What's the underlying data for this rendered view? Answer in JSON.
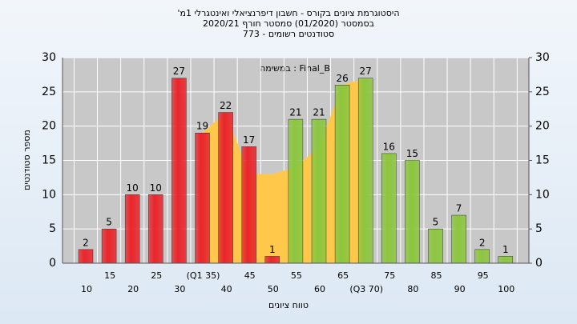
{
  "chart_data": {
    "type": "bar",
    "title": [
      "היסטוגרמת ציונים בקורס - חשבון דיפרנציאלי ואינטגרלי 1מ'",
      "בסמסטר (01/2020) סמסטר חורף 2020/21",
      "סטודנטים רשומים - 773"
    ],
    "annotation": "במשימה : Final_B",
    "xlabel": "טווח ציונים",
    "ylabel": "מספר סטודנטים",
    "categories": [
      "10",
      "15",
      "20",
      "25",
      "30",
      "(Q1 35)",
      "40",
      "45",
      "50",
      "55",
      "60",
      "65",
      "(Q3 70)",
      "75",
      "80",
      "85",
      "90",
      "95",
      "100"
    ],
    "values": [
      2,
      5,
      10,
      10,
      27,
      19,
      22,
      17,
      1,
      21,
      21,
      26,
      27,
      16,
      15,
      5,
      7,
      2,
      1
    ],
    "colors": [
      "#e8262c",
      "#e8262c",
      "#e8262c",
      "#e8262c",
      "#e8262c",
      "#e8262c",
      "#e8262c",
      "#e8262c",
      "#e8262c",
      "#8cc63f",
      "#8cc63f",
      "#8cc63f",
      "#8cc63f",
      "#8cc63f",
      "#8cc63f",
      "#8cc63f",
      "#8cc63f",
      "#8cc63f",
      "#8cc63f"
    ],
    "area": {
      "color": "#ffc84a",
      "values": [
        null,
        null,
        null,
        null,
        null,
        19,
        22,
        13,
        13,
        14,
        17,
        26,
        27,
        null,
        null,
        null,
        null,
        null,
        null
      ]
    },
    "ylim": [
      0,
      30
    ],
    "yticks": [
      0,
      5,
      10,
      15,
      20,
      25,
      30
    ],
    "y2lim": [
      0,
      30
    ],
    "y2ticks": [
      0,
      5,
      10,
      15,
      20,
      25,
      30
    ],
    "grid": true
  }
}
